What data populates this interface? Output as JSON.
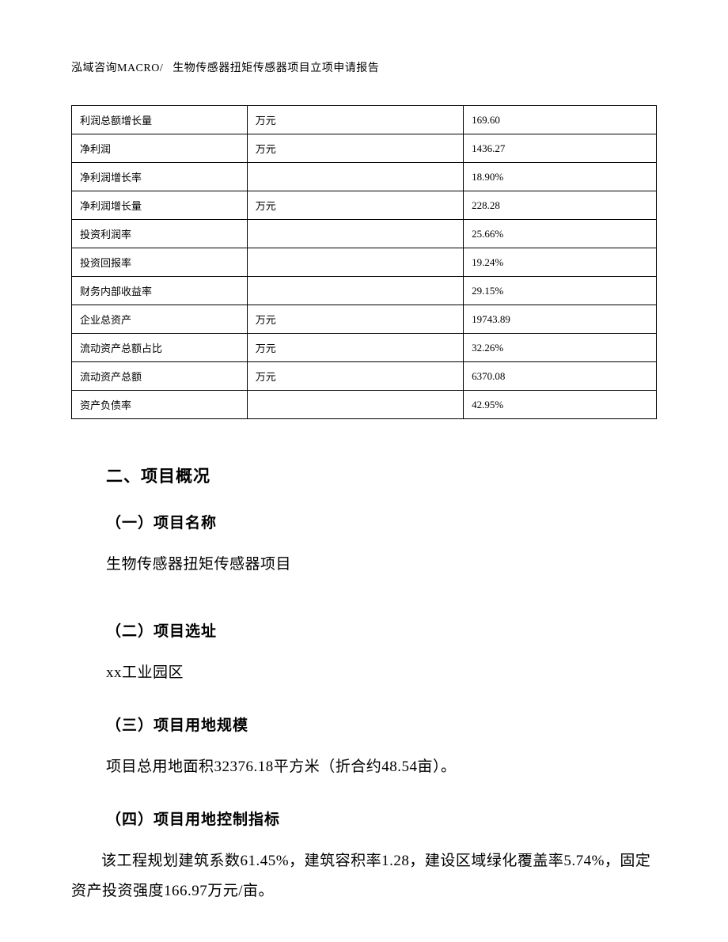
{
  "header": {
    "company": "泓域咨询MACRO/",
    "title": "生物传感器扭矩传感器项目立项申请报告"
  },
  "table": {
    "rows": [
      {
        "label": "利润总额增长量",
        "unit": "万元",
        "value": "169.60"
      },
      {
        "label": "净利润",
        "unit": "万元",
        "value": "1436.27"
      },
      {
        "label": "净利润增长率",
        "unit": "",
        "value": "18.90%"
      },
      {
        "label": "净利润增长量",
        "unit": "万元",
        "value": "228.28"
      },
      {
        "label": "投资利润率",
        "unit": "",
        "value": "25.66%"
      },
      {
        "label": "投资回报率",
        "unit": "",
        "value": "19.24%"
      },
      {
        "label": "财务内部收益率",
        "unit": "",
        "value": "29.15%"
      },
      {
        "label": "企业总资产",
        "unit": "万元",
        "value": "19743.89"
      },
      {
        "label": "流动资产总额占比",
        "unit": "万元",
        "value": "32.26%"
      },
      {
        "label": "流动资产总额",
        "unit": "万元",
        "value": "6370.08"
      },
      {
        "label": "资产负债率",
        "unit": "",
        "value": "42.95%"
      }
    ]
  },
  "sections": {
    "main_title": "二、项目概况",
    "s1": {
      "title": "（一）项目名称",
      "body": "生物传感器扭矩传感器项目"
    },
    "s2": {
      "title": "（二）项目选址",
      "body": "xx工业园区"
    },
    "s3": {
      "title": "（三）项目用地规模",
      "body": "项目总用地面积32376.18平方米（折合约48.54亩）。"
    },
    "s4": {
      "title": "（四）项目用地控制指标",
      "body": "该工程规划建筑系数61.45%，建筑容积率1.28，建设区域绿化覆盖率5.74%，固定资产投资强度166.97万元/亩。"
    }
  }
}
